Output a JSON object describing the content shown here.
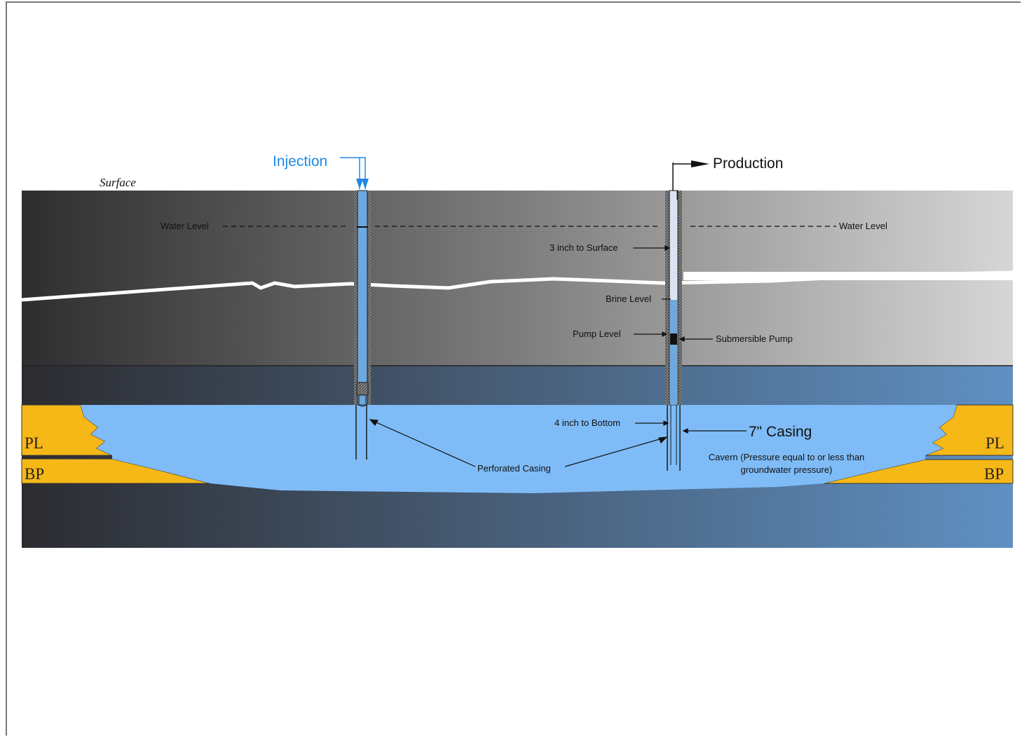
{
  "labels": {
    "surface": "Surface",
    "injection": "Injection",
    "production": "Production",
    "water_level_left": "Water Level",
    "water_level_right": "Water Level",
    "three_inch": "3 inch to Surface",
    "brine_level": "Brine Level",
    "pump_level": "Pump Level",
    "submersible_pump": "Submersible Pump",
    "four_inch": "4 inch to Bottom",
    "seven_casing": "7\" Casing",
    "perforated_casing": "Perforated Casing",
    "cavern_line1": "Cavern (Pressure equal to or less than",
    "cavern_line2": "groundwater pressure)",
    "pl_left": "PL",
    "bp_left": "BP",
    "pl_right": "PL",
    "bp_right": "BP"
  },
  "colors": {
    "injection_blue": "#1e88e5",
    "cavern_blue": "#7fbcf7",
    "salt_yellow": "#f6b817",
    "pipe_fluid": "#6fa8dc"
  }
}
